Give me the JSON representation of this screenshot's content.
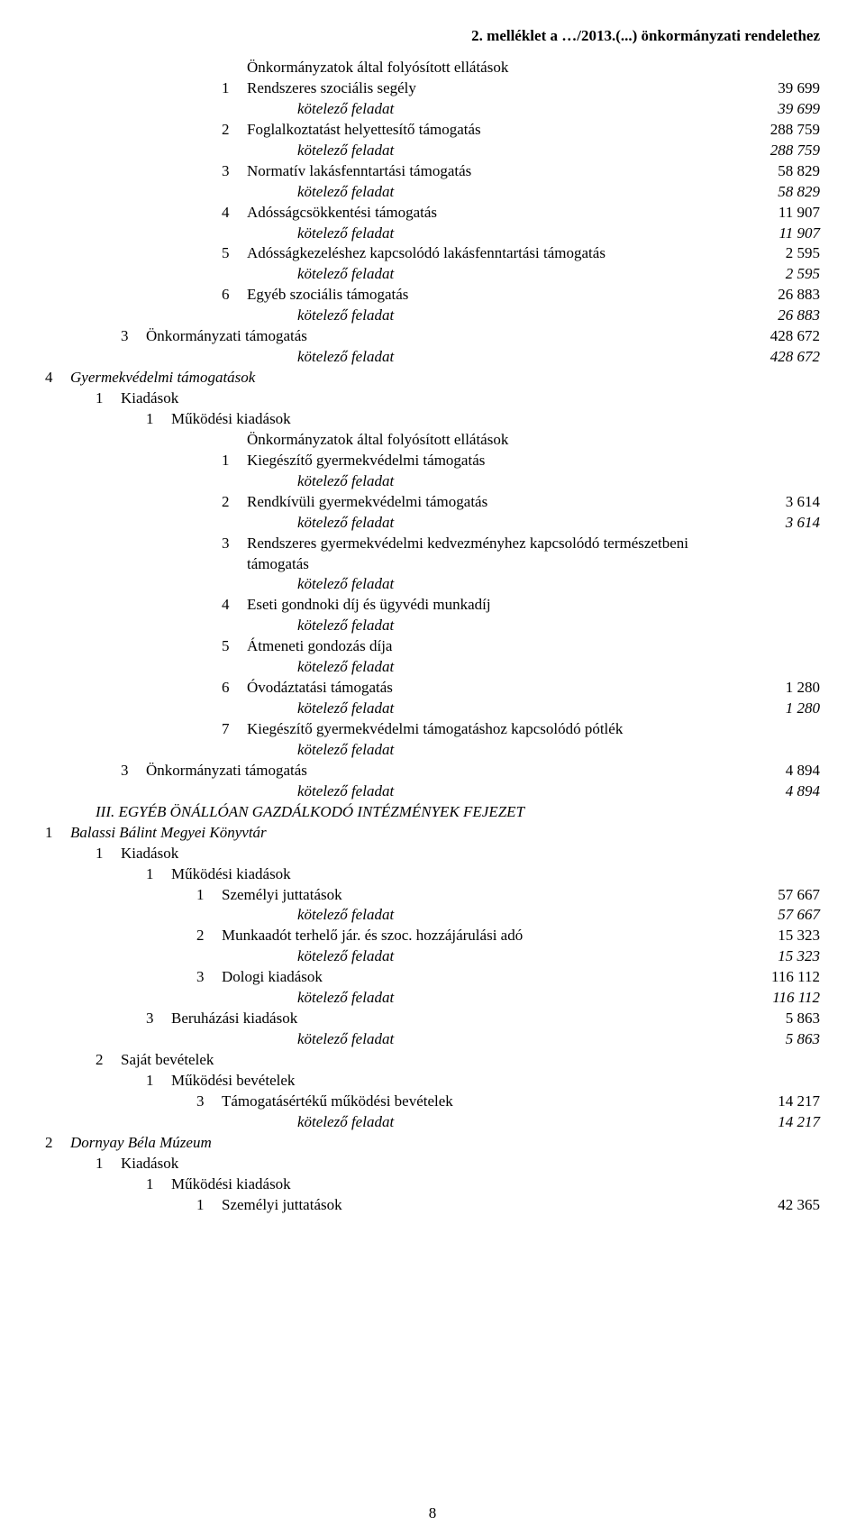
{
  "header": "2. melléklet a …/2013.(...) önkormányzati rendelethez",
  "page_number": "8",
  "rows": [
    {
      "indent": 7,
      "num": "",
      "label": "Önkormányzatok által folyósított ellátások",
      "val": "",
      "italic": false
    },
    {
      "indent": 7,
      "num": "1",
      "label": "Rendszeres szociális segély",
      "val": "39 699",
      "italic": false
    },
    {
      "indent": 9,
      "num": "",
      "label": "kötelező feladat",
      "val": "39 699",
      "italic": true
    },
    {
      "indent": 7,
      "num": "2",
      "label": "Foglalkoztatást helyettesítő támogatás",
      "val": "288 759",
      "italic": false
    },
    {
      "indent": 9,
      "num": "",
      "label": "kötelező feladat",
      "val": "288 759",
      "italic": true
    },
    {
      "indent": 7,
      "num": "3",
      "label": "Normatív lakásfenntartási támogatás",
      "val": "58 829",
      "italic": false
    },
    {
      "indent": 9,
      "num": "",
      "label": "kötelező feladat",
      "val": "58 829",
      "italic": true
    },
    {
      "indent": 7,
      "num": "4",
      "label": "Adósságcsökkentési támogatás",
      "val": "11 907",
      "italic": false
    },
    {
      "indent": 9,
      "num": "",
      "label": "kötelező feladat",
      "val": "11 907",
      "italic": true
    },
    {
      "indent": 7,
      "num": "5",
      "label": "Adósságkezeléshez kapcsolódó lakásfenntartási támogatás",
      "val": "2 595",
      "italic": false
    },
    {
      "indent": 9,
      "num": "",
      "label": "kötelező feladat",
      "val": "2 595",
      "italic": true
    },
    {
      "indent": 7,
      "num": "6",
      "label": "Egyéb szociális támogatás",
      "val": "26 883",
      "italic": false
    },
    {
      "indent": 9,
      "num": "",
      "label": "kötelező feladat",
      "val": "26 883",
      "italic": true
    },
    {
      "indent": 3,
      "num": "3",
      "label": "Önkormányzati támogatás",
      "val": "428 672",
      "italic": false
    },
    {
      "indent": 9,
      "num": "",
      "label": "kötelező feladat",
      "val": "428 672",
      "italic": true
    },
    {
      "indent": 0,
      "num": "4",
      "label": "Gyermekvédelmi támogatások",
      "val": "",
      "italic": true
    },
    {
      "indent": 2,
      "num": "1",
      "label": "Kiadások",
      "val": "",
      "italic": false
    },
    {
      "indent": 4,
      "num": "1",
      "label": "Működési kiadások",
      "val": "",
      "italic": false
    },
    {
      "indent": 7,
      "num": "",
      "label": "Önkormányzatok által folyósított ellátások",
      "val": "",
      "italic": false
    },
    {
      "indent": 7,
      "num": "1",
      "label": "Kiegészítő gyermekvédelmi támogatás",
      "val": "",
      "italic": false
    },
    {
      "indent": 9,
      "num": "",
      "label": "kötelező feladat",
      "val": "",
      "italic": true
    },
    {
      "indent": 7,
      "num": "2",
      "label": "Rendkívüli gyermekvédelmi támogatás",
      "val": "3 614",
      "italic": false
    },
    {
      "indent": 9,
      "num": "",
      "label": "kötelező feladat",
      "val": "3 614",
      "italic": true
    },
    {
      "indent": 7,
      "num": "3",
      "label": "Rendszeres gyermekvédelmi kedvezményhez kapcsolódó természetbeni támogatás",
      "val": "",
      "italic": false
    },
    {
      "indent": 9,
      "num": "",
      "label": "kötelező feladat",
      "val": "",
      "italic": true
    },
    {
      "indent": 7,
      "num": "4",
      "label": "Eseti gondnoki díj és ügyvédi munkadíj",
      "val": "",
      "italic": false
    },
    {
      "indent": 9,
      "num": "",
      "label": "kötelező feladat",
      "val": "",
      "italic": true
    },
    {
      "indent": 7,
      "num": "5",
      "label": "Átmeneti gondozás díja",
      "val": "",
      "italic": false
    },
    {
      "indent": 9,
      "num": "",
      "label": "kötelező feladat",
      "val": "",
      "italic": true
    },
    {
      "indent": 7,
      "num": "6",
      "label": "Óvodáztatási támogatás",
      "val": "1 280",
      "italic": false
    },
    {
      "indent": 9,
      "num": "",
      "label": "kötelező feladat",
      "val": "1 280",
      "italic": true
    },
    {
      "indent": 7,
      "num": "7",
      "label": "Kiegészítő gyermekvédelmi támogatáshoz kapcsolódó pótlék",
      "val": "",
      "italic": false
    },
    {
      "indent": 9,
      "num": "",
      "label": "kötelező feladat",
      "val": "",
      "italic": true
    },
    {
      "indent": 3,
      "num": "3",
      "label": "Önkormányzati támogatás",
      "val": "4 894",
      "italic": false
    },
    {
      "indent": 9,
      "num": "",
      "label": "kötelező feladat",
      "val": "4 894",
      "italic": true
    },
    {
      "indent": 1,
      "num": "",
      "label": "III. EGYÉB ÖNÁLLÓAN GAZDÁLKODÓ INTÉZMÉNYEK FEJEZET",
      "val": "",
      "italic": true
    },
    {
      "indent": 0,
      "num": "1",
      "label": "Balassi Bálint Megyei Könyvtár",
      "val": "",
      "italic": true
    },
    {
      "indent": 2,
      "num": "1",
      "label": "Kiadások",
      "val": "",
      "italic": false
    },
    {
      "indent": 4,
      "num": "1",
      "label": "Működési kiadások",
      "val": "",
      "italic": false
    },
    {
      "indent": 6,
      "num": "1",
      "label": "Személyi juttatások",
      "val": "57 667",
      "italic": false
    },
    {
      "indent": 9,
      "num": "",
      "label": "kötelező feladat",
      "val": "57 667",
      "italic": true
    },
    {
      "indent": 6,
      "num": "2",
      "label": "Munkaadót terhelő jár. és szoc. hozzájárulási adó",
      "val": "15 323",
      "italic": false
    },
    {
      "indent": 9,
      "num": "",
      "label": "kötelező feladat",
      "val": "15 323",
      "italic": true
    },
    {
      "indent": 6,
      "num": "3",
      "label": "Dologi kiadások",
      "val": "116 112",
      "italic": false
    },
    {
      "indent": 9,
      "num": "",
      "label": "kötelező feladat",
      "val": "116 112",
      "italic": true
    },
    {
      "indent": 4,
      "num": "3",
      "label": "Beruházási kiadások",
      "val": "5 863",
      "italic": false
    },
    {
      "indent": 9,
      "num": "",
      "label": "kötelező feladat",
      "val": "5 863",
      "italic": true
    },
    {
      "indent": 2,
      "num": "2",
      "label": "Saját bevételek",
      "val": "",
      "italic": false
    },
    {
      "indent": 4,
      "num": "1",
      "label": "Működési bevételek",
      "val": "",
      "italic": false
    },
    {
      "indent": 6,
      "num": "3",
      "label": "Támogatásértékű működési bevételek",
      "val": "14 217",
      "italic": false
    },
    {
      "indent": 9,
      "num": "",
      "label": "kötelező feladat",
      "val": "14 217",
      "italic": true
    },
    {
      "indent": 0,
      "num": "2",
      "label": "Dornyay Béla Múzeum",
      "val": "",
      "italic": true
    },
    {
      "indent": 2,
      "num": "1",
      "label": "Kiadások",
      "val": "",
      "italic": false
    },
    {
      "indent": 4,
      "num": "1",
      "label": "Működési kiadások",
      "val": "",
      "italic": false
    },
    {
      "indent": 6,
      "num": "1",
      "label": "Személyi juttatások",
      "val": "42 365",
      "italic": false
    }
  ]
}
